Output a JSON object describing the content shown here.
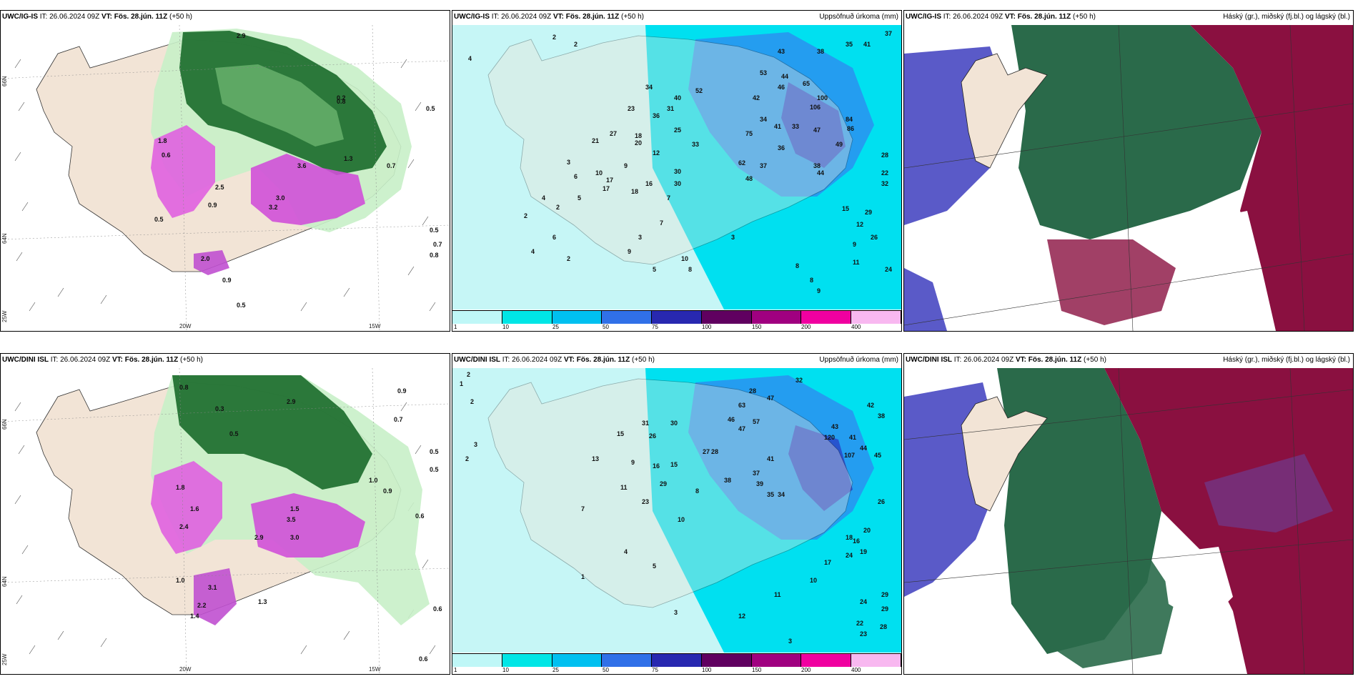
{
  "panels": [
    {
      "id": "p1",
      "model": "UWC/IG-IS",
      "it_label": "IT:",
      "it": "26.06.2024 09Z",
      "vt_label": "VT:",
      "vt": "Fös. 28.jún. 11Z",
      "lead": "(+50 h)",
      "field": ""
    },
    {
      "id": "p2",
      "model": "UWC/IG-IS",
      "it_label": "IT:",
      "it": "26.06.2024 09Z",
      "vt_label": "VT:",
      "vt": "Fös. 28.jún. 11Z",
      "lead": "(+50 h)",
      "field": "Uppsöfnuð úrkoma (mm)"
    },
    {
      "id": "p3",
      "model": "UWC/IG-IS",
      "it_label": "IT:",
      "it": "26.06.2024 09Z",
      "vt_label": "VT:",
      "vt": "Fös. 28.jún. 11Z",
      "lead": "(+50 h)",
      "field": "Háský (gr.), miðský (fj.bl.) og lágský (bl.)"
    },
    {
      "id": "p4",
      "model": "UWC/DINI ISL",
      "it_label": "IT:",
      "it": "26.06.2024 09Z",
      "vt_label": "VT:",
      "vt": "Fös. 28.jún. 11Z",
      "lead": "(+50 h)",
      "field": ""
    },
    {
      "id": "p5",
      "model": "UWC/DINI ISL",
      "it_label": "IT:",
      "it": "26.06.2024 09Z",
      "vt_label": "VT:",
      "vt": "Fös. 28.jún. 11Z",
      "lead": "(+50 h)",
      "field": "Uppsöfnuð úrkoma (mm)"
    },
    {
      "id": "p6",
      "model": "UWC/DINI ISL",
      "it_label": "IT:",
      "it": "26.06.2024 09Z",
      "vt_label": "VT:",
      "vt": "Fös. 28.jún. 11Z",
      "lead": "(+50 h)",
      "field": "Háský (gr.), miðský (fj.bl.) og lágský (bl.)"
    }
  ],
  "axes": {
    "lat_66": "66N",
    "lat_64": "64N",
    "lat_25": "25W",
    "lon_20": "20W",
    "lon_15": "15W"
  },
  "legend": {
    "labels": [
      "1",
      "10",
      "25",
      "50",
      "75",
      "100",
      "150",
      "200",
      "400"
    ],
    "colors": [
      "#bff7f7",
      "#00e6e6",
      "#00c0f0",
      "#3070e8",
      "#2828b0",
      "#600060",
      "#a00080",
      "#f000a0",
      "#f8b8f0"
    ]
  },
  "colors": {
    "land": "#f2e4d6",
    "precip_light": "#c8f0c8",
    "precip_mid": "#80c880",
    "precip_dark": "#1a6a2a",
    "precip_heavy": "#e060e0",
    "accum_light": "#c6f6f6",
    "accum_cyan": "#00e0f0",
    "accum_blue": "#2a90f0",
    "accum_dark": "#2848c8",
    "cloud_high": "#2a6a4a",
    "cloud_mid": "#8a1040",
    "cloud_low": "#5a5ac8"
  },
  "p1_values": [
    "2.9",
    "0.8",
    "0.5",
    "1.8",
    "0.6",
    "3.6",
    "1.3",
    "2.5",
    "0.9",
    "2.0",
    "0.5",
    "3.0",
    "3.2",
    "0.2",
    "0.7",
    "0.5",
    "0.9",
    "0.5",
    "0.8",
    "0.7"
  ],
  "p2_values": [
    "2",
    "4",
    "2",
    "37",
    "35",
    "41",
    "38",
    "43",
    "53",
    "44",
    "65",
    "46",
    "42",
    "34",
    "52",
    "40",
    "36",
    "31",
    "23",
    "27",
    "21",
    "18",
    "12",
    "20",
    "25",
    "33",
    "75",
    "34",
    "41",
    "33",
    "37",
    "36",
    "48",
    "62",
    "49",
    "44",
    "3",
    "6",
    "10",
    "9",
    "5",
    "17",
    "2",
    "4",
    "30",
    "18",
    "7",
    "3",
    "9",
    "2",
    "8",
    "4",
    "6",
    "10",
    "5",
    "2",
    "9",
    "8",
    "8",
    "3",
    "11",
    "24",
    "15",
    "12",
    "29",
    "26",
    "22",
    "17",
    "16",
    "7",
    "32",
    "28",
    "30",
    "38",
    "100",
    "106",
    "47",
    "84",
    "86",
    "9"
  ],
  "p4_values": [
    "0.8",
    "0.3",
    "0.5",
    "2.9",
    "0.9",
    "0.7",
    "0.5",
    "1.0",
    "0.6",
    "0.6",
    "0.5",
    "1.5",
    "3.5",
    "3.0",
    "2.9",
    "1.6",
    "1.8",
    "2.4",
    "1.3",
    "1.0",
    "0.6",
    "0.9",
    "3.1",
    "2.2",
    "1.4"
  ],
  "p5_values": [
    "2",
    "1",
    "2",
    "3",
    "2",
    "32",
    "28",
    "47",
    "63",
    "46",
    "57",
    "47",
    "41",
    "37",
    "38",
    "39",
    "35",
    "34",
    "107",
    "120",
    "43",
    "41",
    "44",
    "45",
    "38",
    "42",
    "31",
    "30",
    "26",
    "27",
    "28",
    "29",
    "23",
    "15",
    "13",
    "9",
    "16",
    "15",
    "11",
    "8",
    "10",
    "7",
    "3",
    "4",
    "24",
    "17",
    "20",
    "19",
    "16",
    "18",
    "22",
    "23",
    "28",
    "29",
    "26",
    "24",
    "29",
    "10",
    "12",
    "11",
    "3",
    "5",
    "1"
  ]
}
